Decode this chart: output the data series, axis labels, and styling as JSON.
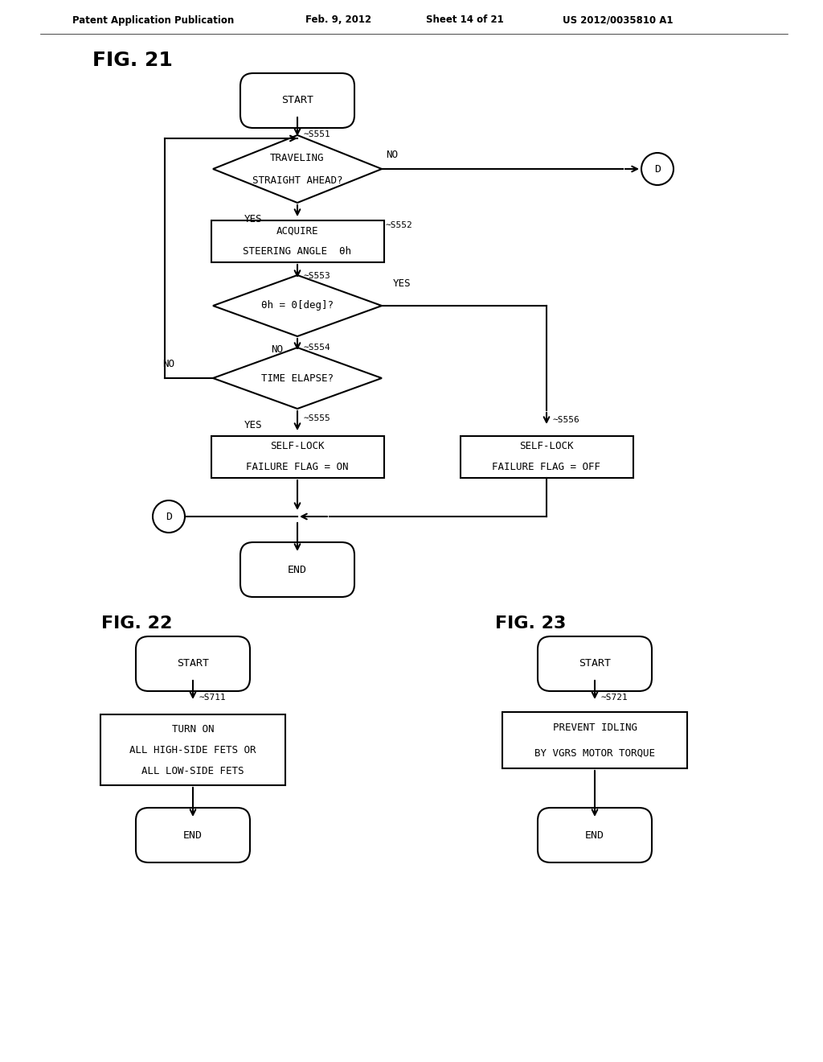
{
  "bg_color": "#ffffff",
  "line_color": "#000000",
  "text_color": "#000000",
  "header_left": "Patent Application Publication",
  "header_mid1": "Feb. 9, 2012",
  "header_mid2": "Sheet 14 of 21",
  "header_right": "US 2012/0035810 A1",
  "fig21": "FIG. 21",
  "fig22": "FIG. 22",
  "fig23": "FIG. 23",
  "theta": "θ"
}
